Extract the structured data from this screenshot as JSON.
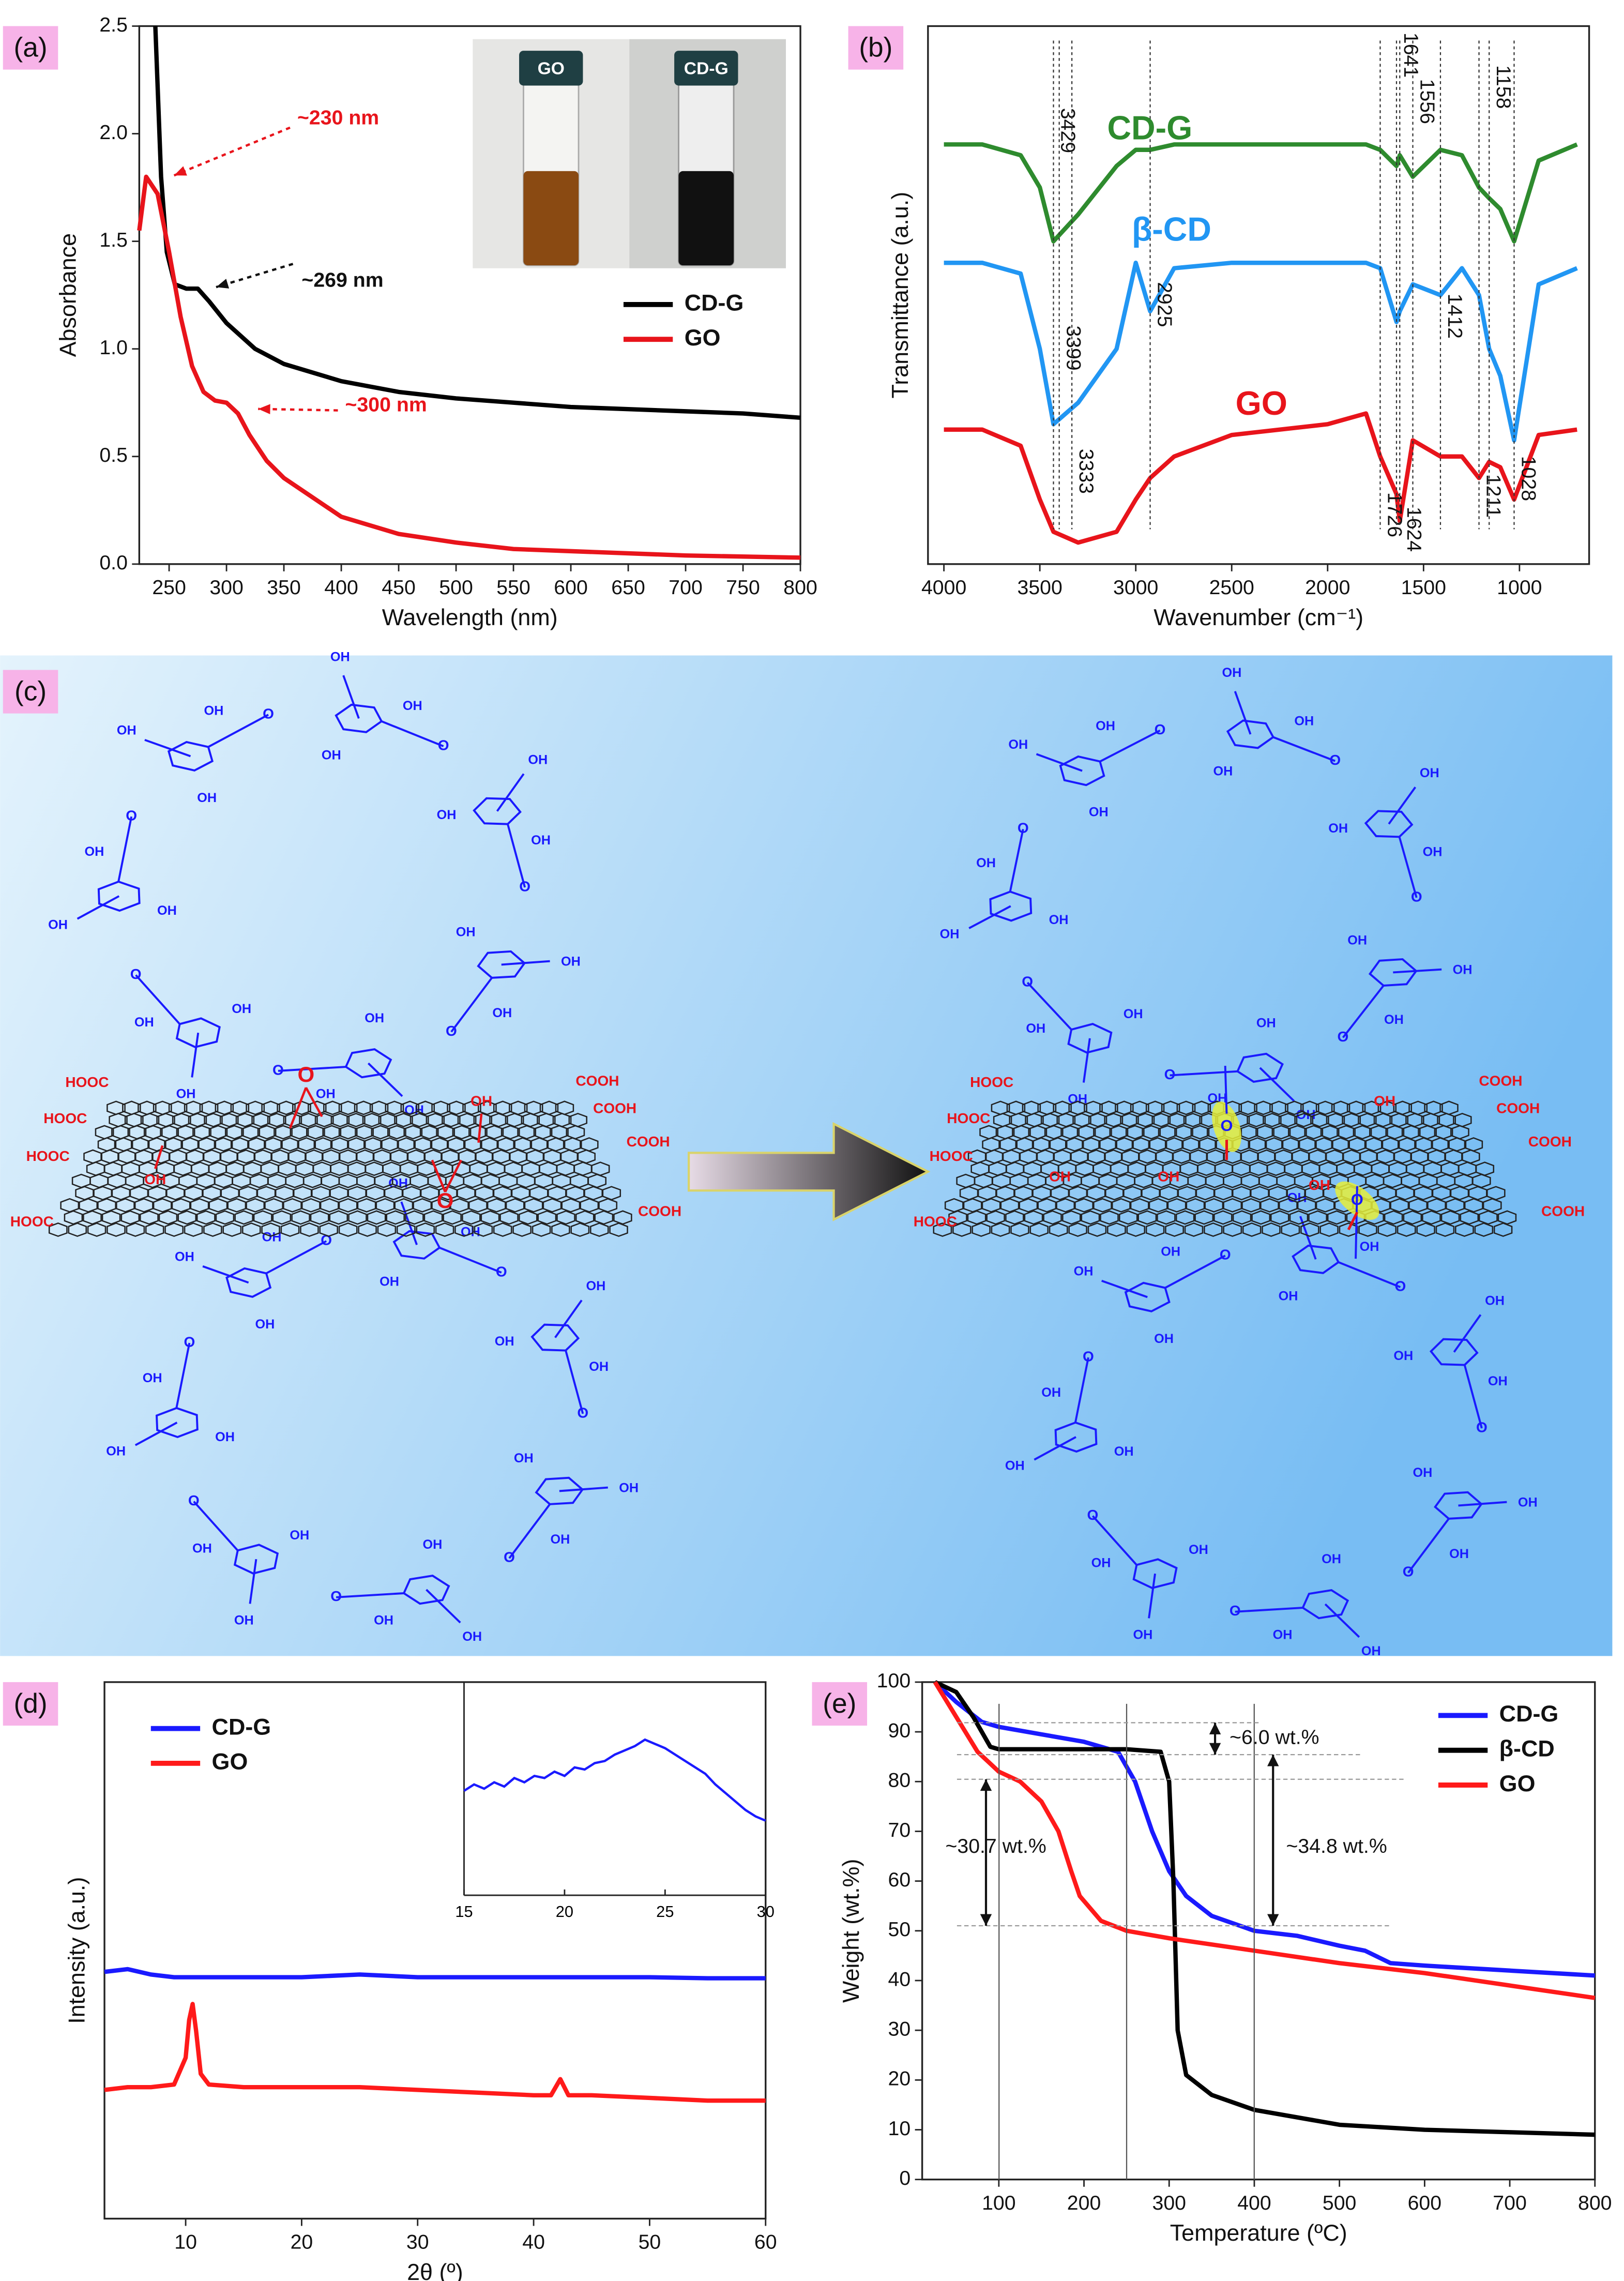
{
  "chart_data": [
    {
      "type": "line",
      "panel_label": "(a)",
      "x_label": "Wavelength (nm)",
      "y_label": "Absorbance",
      "xlim": [
        224,
        800
      ],
      "ylim": [
        0,
        2.5
      ],
      "xticks": [
        250,
        300,
        350,
        400,
        450,
        500,
        550,
        600,
        650,
        700,
        750,
        800
      ],
      "yticks": [
        {
          "value": 0,
          "label": "0.0"
        },
        {
          "value": 0.5,
          "label": "0.5"
        },
        {
          "value": 1,
          "label": "1.0"
        },
        {
          "value": 1.5,
          "label": "1.5"
        },
        {
          "value": 2,
          "label": "2.0"
        },
        {
          "value": 2.5,
          "label": "2.5"
        }
      ],
      "legend": "lower right",
      "series": [
        {
          "name": "CD-G",
          "color": "#000000",
          "x": [
            238,
            243,
            248,
            255,
            265,
            275,
            285,
            300,
            325,
            350,
            400,
            450,
            500,
            550,
            600,
            650,
            700,
            750,
            800
          ],
          "values": [
            2.5,
            1.8,
            1.45,
            1.3,
            1.28,
            1.28,
            1.22,
            1.12,
            1.0,
            0.93,
            0.85,
            0.8,
            0.77,
            0.75,
            0.73,
            0.72,
            0.71,
            0.7,
            0.68
          ]
        },
        {
          "name": "GO",
          "color": "#e8141b",
          "x": [
            224,
            230,
            240,
            250,
            260,
            270,
            280,
            290,
            300,
            310,
            320,
            335,
            350,
            400,
            450,
            500,
            550,
            600,
            700,
            800
          ],
          "values": [
            1.55,
            1.8,
            1.72,
            1.45,
            1.15,
            0.92,
            0.8,
            0.76,
            0.75,
            0.7,
            0.6,
            0.48,
            0.4,
            0.22,
            0.14,
            0.1,
            0.07,
            0.06,
            0.04,
            0.03
          ]
        }
      ],
      "annotations": [
        "~230 nm",
        "~269 nm",
        "~300 nm"
      ],
      "inset_labels": [
        "GO",
        "CD-G"
      ]
    },
    {
      "type": "line",
      "panel_label": "(b)",
      "x_label": "Wavenumber (cm⁻¹)",
      "y_label": "Transmittance (a.u.)",
      "xlim": [
        4083,
        637
      ],
      "ylim": [
        0,
        100
      ],
      "xticks": [
        4000,
        3500,
        3000,
        2500,
        2000,
        1500,
        1000
      ],
      "x": [
        4000,
        3800,
        3600,
        3500,
        3429,
        3300,
        3100,
        3000,
        2925,
        2800,
        2500,
        2000,
        1800,
        1726,
        1641,
        1624,
        1556,
        1412,
        1300,
        1211,
        1158,
        1100,
        1028,
        900,
        700
      ],
      "series": [
        {
          "name": "CD-G",
          "color": "#2e8b2e",
          "values": [
            78,
            78,
            76,
            70,
            60,
            65,
            74,
            77,
            77,
            78,
            78,
            78,
            78,
            77,
            74,
            76,
            72,
            77,
            76,
            70,
            68,
            66,
            60,
            75,
            78
          ]
        },
        {
          "name": "β-CD",
          "color": "#2196f3",
          "values": [
            56,
            56,
            54,
            40,
            26,
            30,
            40,
            56,
            47,
            55,
            56,
            56,
            56,
            55,
            45,
            47,
            52,
            50,
            55,
            50,
            40,
            35,
            23,
            52,
            55
          ]
        },
        {
          "name": "GO",
          "color": "#e8141b",
          "values": [
            25,
            25,
            22,
            12,
            6,
            4,
            6,
            12,
            16,
            20,
            24,
            26,
            28,
            20,
            13,
            8,
            23,
            20,
            20,
            16,
            19,
            18,
            12,
            24,
            25
          ]
        }
      ],
      "peaks": [
        3429,
        3399,
        3333,
        2925,
        1726,
        1641,
        1624,
        1556,
        1412,
        1211,
        1158,
        1028
      ]
    },
    {
      "type": "line",
      "panel_label": "(d)",
      "x_label": "2θ (º)",
      "y_label": "Intensity (a.u.)",
      "xlim": [
        3,
        60
      ],
      "ylim": [
        0,
        100
      ],
      "xticks": [
        10,
        20,
        30,
        40,
        50,
        60
      ],
      "legend": "upper left",
      "x": [
        3,
        5,
        7,
        9,
        10,
        10.3,
        10.6,
        10.9,
        11.3,
        12,
        15,
        20,
        25,
        30,
        35,
        40,
        41.5,
        42.3,
        43,
        45,
        50,
        55,
        60
      ],
      "series": [
        {
          "name": "CD-G",
          "color": "#1a1aff",
          "values": [
            46,
            46.5,
            45.5,
            45,
            45,
            45,
            45,
            45,
            45,
            45,
            45,
            45,
            45.5,
            45,
            45,
            45,
            45,
            45,
            45,
            45,
            45,
            44.8,
            44.8
          ]
        },
        {
          "name": "GO",
          "color": "#ff1a1a",
          "values": [
            24,
            24.5,
            24.5,
            25,
            30,
            37,
            40,
            35,
            27,
            25,
            24.5,
            24.5,
            24.5,
            24,
            23.5,
            23,
            23,
            26,
            23,
            23,
            22.5,
            22,
            22
          ]
        }
      ],
      "inset": {
        "xlim": [
          15,
          30
        ],
        "ylim": [
          0,
          100
        ],
        "xticks": [
          15,
          20,
          25,
          30
        ],
        "color": "#1a1aff",
        "x": [
          15,
          15.5,
          16,
          16.5,
          17,
          17.5,
          18,
          18.5,
          19,
          19.5,
          20,
          20.5,
          21,
          21.5,
          22,
          22.5,
          23,
          23.5,
          24,
          24.5,
          25,
          25.5,
          26,
          26.5,
          27,
          27.5,
          28,
          28.5,
          29,
          29.5,
          30
        ],
        "values": [
          49,
          52,
          50,
          53,
          51,
          55,
          53,
          56,
          55,
          58,
          56,
          60,
          59,
          62,
          63,
          66,
          68,
          70,
          73,
          71,
          69,
          66,
          63,
          60,
          57,
          52,
          48,
          44,
          40,
          37,
          35
        ]
      }
    },
    {
      "type": "line",
      "panel_label": "(e)",
      "x_label": "Temperature (ºC)",
      "y_label": "Weight (wt.%)",
      "xlim": [
        10,
        800
      ],
      "ylim": [
        0,
        100
      ],
      "xticks": [
        100,
        200,
        300,
        400,
        500,
        600,
        700,
        800
      ],
      "yticks": [
        0,
        10,
        20,
        30,
        40,
        50,
        60,
        70,
        80,
        90,
        100
      ],
      "legend": "upper right",
      "series": [
        {
          "name": "CD-G",
          "color": "#1a1aff",
          "x": [
            25,
            50,
            80,
            100,
            150,
            200,
            240,
            260,
            280,
            300,
            320,
            350,
            400,
            450,
            500,
            530,
            560,
            600,
            700,
            800
          ],
          "values": [
            100,
            96,
            92,
            91,
            89.5,
            88,
            86,
            80,
            70,
            62,
            57,
            53,
            50,
            49,
            47,
            46,
            43.5,
            43,
            42,
            41
          ]
        },
        {
          "name": "β-CD",
          "color": "#000000",
          "x": [
            25,
            50,
            70,
            90,
            100,
            200,
            250,
            290,
            300,
            305,
            310,
            320,
            350,
            400,
            500,
            600,
            700,
            800
          ],
          "values": [
            100,
            98,
            93,
            87,
            86.5,
            86.5,
            86.5,
            86,
            80,
            60,
            30,
            21,
            17,
            14,
            11,
            10,
            9.5,
            9
          ]
        },
        {
          "name": "GO",
          "color": "#ff1a1a",
          "x": [
            25,
            50,
            75,
            100,
            125,
            150,
            170,
            185,
            195,
            220,
            250,
            300,
            400,
            500,
            600,
            700,
            800
          ],
          "values": [
            100,
            93,
            86,
            82,
            80,
            76,
            70,
            62,
            57,
            52,
            50,
            48.5,
            46,
            43.5,
            41.5,
            39,
            36.5
          ]
        }
      ],
      "annotations": [
        "~6.0 wt.%",
        "~30.7 wt.%",
        "~34.8 wt.%"
      ]
    }
  ],
  "diagram": {
    "panel_label": "(c)",
    "labels": {
      "oh": "OH",
      "o": "O",
      "hooc": "HOOC",
      "cooh": "COOH"
    }
  }
}
